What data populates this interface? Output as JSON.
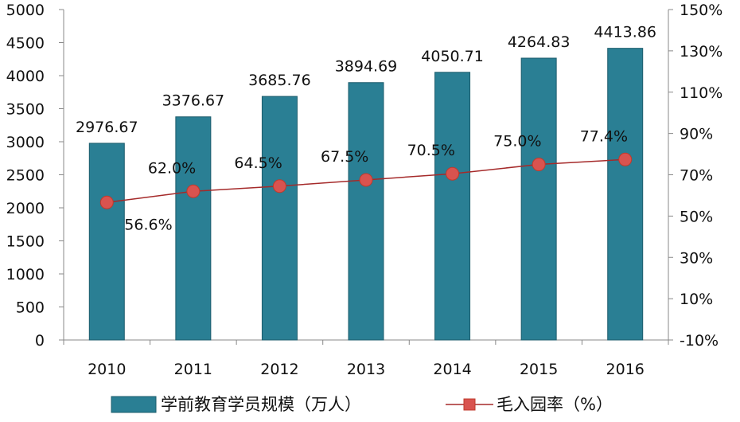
{
  "chart_data": {
    "type": "bar",
    "categories": [
      "2010",
      "2011",
      "2012",
      "2013",
      "2014",
      "2015",
      "2016"
    ],
    "series": [
      {
        "name": "学前教育学员规模（万人）",
        "type": "bar",
        "axis": "left",
        "values": [
          2976.67,
          3376.67,
          3685.76,
          3894.69,
          4050.71,
          4264.83,
          4413.86
        ],
        "labels": [
          "2976.67",
          "3376.67",
          "3685.76",
          "3894.69",
          "4050.71",
          "4264.83",
          "4413.86"
        ],
        "color": "#2a7f94"
      },
      {
        "name": "毛入园率（%）",
        "type": "line",
        "axis": "right",
        "values": [
          56.6,
          62.0,
          64.5,
          67.5,
          70.5,
          75.0,
          77.4
        ],
        "labels": [
          "56.6%",
          "62.0%",
          "64.5%",
          "67.5%",
          "70.5%",
          "75.0%",
          "77.4%"
        ],
        "line_color": "#a52a2a",
        "marker_color": "#d9534f"
      }
    ],
    "y_left": {
      "ylim": [
        0,
        5000
      ],
      "ticks": [
        "0",
        "500",
        "1000",
        "1500",
        "2000",
        "2500",
        "3000",
        "3500",
        "4000",
        "4500",
        "5000"
      ]
    },
    "y_right": {
      "ylim": [
        -10,
        150
      ],
      "ticks": [
        "-10%",
        "10%",
        "30%",
        "50%",
        "70%",
        "90%",
        "110%",
        "130%",
        "150%"
      ]
    },
    "grid": false,
    "legend_placement": "bottom"
  }
}
